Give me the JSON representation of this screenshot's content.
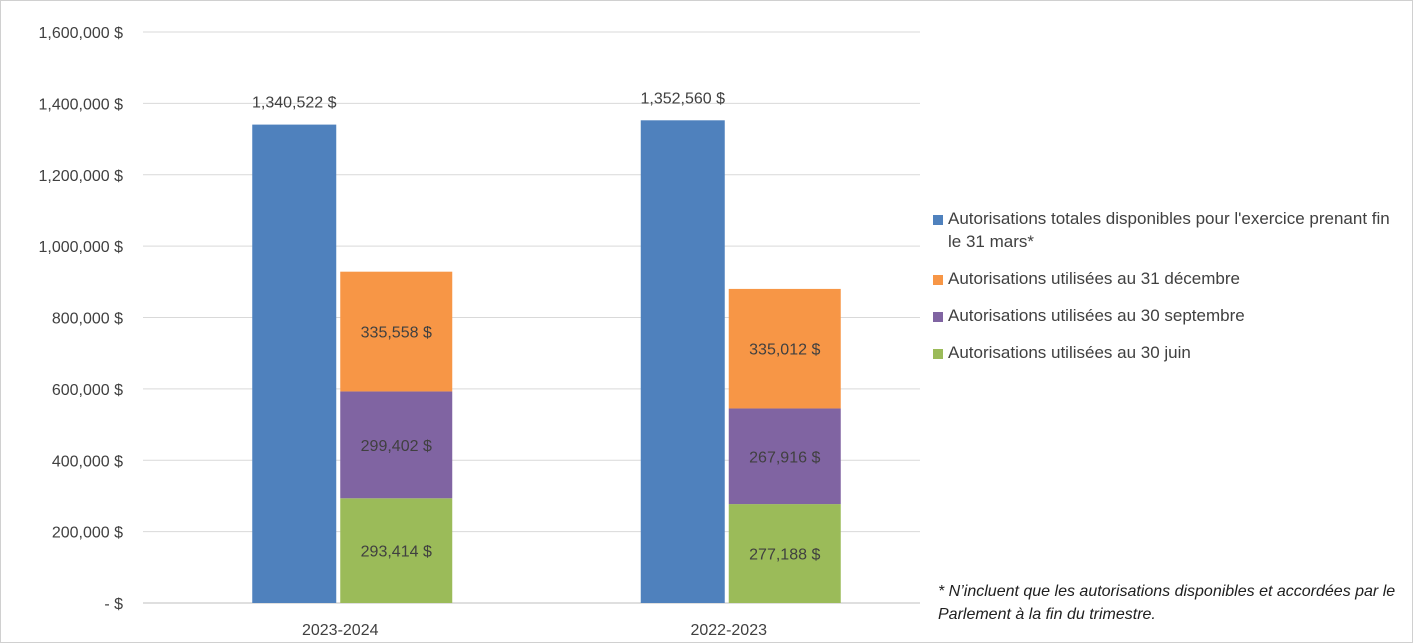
{
  "chart_data": {
    "type": "bar",
    "stacked": true,
    "categories": [
      "2023-2024",
      "2022-2023"
    ],
    "series": [
      {
        "name": "Autorisations totales disponibles pour l'exercice prenant fin le 31 mars*",
        "values": [
          1340522,
          1352560
        ],
        "labels": [
          "1,340,522  $",
          "1,352,560  $"
        ],
        "color": "#4F81BD",
        "stack": "total"
      },
      {
        "name": "Autorisations utilisées au 30 juin",
        "values": [
          293414,
          277188
        ],
        "labels": [
          "293,414  $",
          "277,188  $"
        ],
        "color": "#9BBB59",
        "stack": "used"
      },
      {
        "name": "Autorisations utilisées au 30 septembre",
        "values": [
          299402,
          267916
        ],
        "labels": [
          "299,402  $",
          "267,916  $"
        ],
        "color": "#8064A2",
        "stack": "used"
      },
      {
        "name": "Autorisations utilisées au 31 décembre",
        "values": [
          335558,
          335012
        ],
        "labels": [
          "335,558  $",
          "335,012  $"
        ],
        "color": "#F79646",
        "stack": "used"
      }
    ],
    "ylim": [
      0,
      1600000
    ],
    "yticks": [
      0,
      200000,
      400000,
      600000,
      800000,
      1000000,
      1200000,
      1400000,
      1600000
    ],
    "ytick_labels": [
      "-  $",
      "200,000  $",
      "400,000  $",
      "600,000  $",
      "800,000  $",
      "1,000,000  $",
      "1,200,000  $",
      "1,400,000  $",
      "1,600,000  $"
    ],
    "grid": true,
    "legend_position": "right"
  },
  "legend": {
    "items": [
      {
        "label": "Autorisations totales disponibles pour l'exercice prenant fin le 31 mars*",
        "color": "#4F81BD"
      },
      {
        "label": "Autorisations utilisées au 31 décembre",
        "color": "#F79646"
      },
      {
        "label": "Autorisations utilisées au 30 septembre",
        "color": "#8064A2"
      },
      {
        "label": "Autorisations utilisées au 30 juin",
        "color": "#9BBB59"
      }
    ]
  },
  "footnote": "* N’incluent que les autorisations disponibles et accordées par le Parlement à la fin du trimestre."
}
